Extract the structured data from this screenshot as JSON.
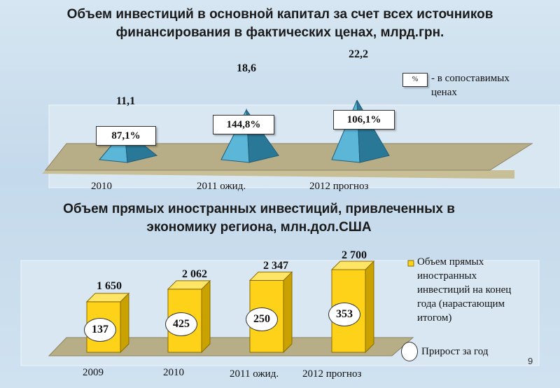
{
  "corner_mark": "9",
  "chart_data": [
    {
      "type": "bar",
      "title": "Объем инвестиций в основной капитал за счет всех источников финансирования в фактических ценах, млрд.грн.",
      "categories": [
        "2010",
        "2011 ожид.",
        "2012 прогноз"
      ],
      "values": [
        11.1,
        18.6,
        22.2
      ],
      "value_labels": [
        "11,1",
        "18,6",
        "22,2"
      ],
      "percent_labels": [
        "87,1%",
        "144,8%",
        "106,1%"
      ],
      "legend": {
        "symbol": "%",
        "text_line1": "- в сопоставимых",
        "text_line2": "ценах"
      },
      "shape": "pyramid",
      "colors": {
        "pyramid": "#4aa3c6",
        "floor": "#b9b08a"
      }
    },
    {
      "type": "bar",
      "title": "Объем прямых иностранных инвестиций, привлеченных в экономику региона, млн.дол.США",
      "categories": [
        "2009",
        "2010",
        "2011 ожид.",
        "2012 прогноз"
      ],
      "series": [
        {
          "name": "Объем прямых иностранных инвестиций на конец года (нарастающим итогом)",
          "values": [
            1650,
            2062,
            2347,
            2700
          ],
          "labels": [
            "1 650",
            "2 062",
            "2 347",
            "2 700"
          ]
        },
        {
          "name": "Прирост за год",
          "values": [
            137,
            425,
            250,
            353
          ],
          "labels": [
            "137",
            "425",
            "250",
            "353"
          ]
        }
      ],
      "legend": {
        "line1": "Объем прямых",
        "line2": "иностранных",
        "line3": "инвестиций на конец",
        "line4": "года (нарастающим",
        "line5": "итогом)",
        "line6": "Прирост за год"
      },
      "colors": {
        "bar": "#ffd21a",
        "floor": "#b9b08a"
      }
    }
  ]
}
